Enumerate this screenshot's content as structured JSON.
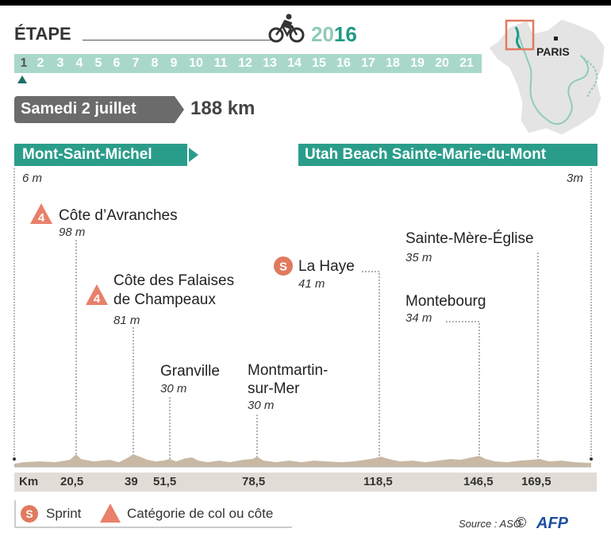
{
  "header": {
    "etape_label": "ÉTAPE",
    "year_part1": "20",
    "year_part2": "16"
  },
  "stages": [
    "1",
    "2",
    "3",
    "4",
    "5",
    "6",
    "7",
    "8",
    "9",
    "10",
    "11",
    "12",
    "13",
    "14",
    "15",
    "16",
    "17",
    "18",
    "19",
    "20",
    "21"
  ],
  "current_stage": "1",
  "date": "Samedi 2  juillet",
  "distance": "188 km",
  "start": {
    "name": "Mont-Saint-Michel",
    "altitude": "6 m"
  },
  "finish": {
    "name": "Utah Beach Sainte-Marie-du-Mont",
    "altitude": "3m"
  },
  "map": {
    "city_label": "PARIS"
  },
  "climbs": [
    {
      "category": "4",
      "name": "Côte d’Avranches",
      "altitude": "98 m"
    },
    {
      "category": "4",
      "name_line1": "Côte des Falaises",
      "name_line2": "de Champeaux",
      "altitude": "81 m"
    }
  ],
  "sprint": {
    "badge": "S",
    "name": "La Haye",
    "altitude": "41 m"
  },
  "places": [
    {
      "name": "Granville",
      "altitude": "30 m"
    },
    {
      "name_line1": "Montmartin-",
      "name_line2": "sur-Mer",
      "altitude": "30 m"
    },
    {
      "name": "Montebourg",
      "altitude": "34 m"
    },
    {
      "name": "Sainte-Mère-Église",
      "altitude": "35 m"
    }
  ],
  "km_axis": {
    "label": "Km",
    "ticks": [
      "20,5",
      "39",
      "51,5",
      "78,5",
      "118,5",
      "146,5",
      "169,5"
    ]
  },
  "legend": {
    "sprint_badge": "S",
    "sprint_label": "Sprint",
    "climb_label": "Catégorie de col ou côte"
  },
  "source": "Source : ASO",
  "copyright": "©",
  "agency": "AFP",
  "colors": {
    "teal": "#2a9d8a",
    "light_teal": "#a9d8cb",
    "climb_orange": "#e8806a",
    "sprint_orange": "#e07a5f",
    "profile_fill": "#c8b8a4"
  }
}
